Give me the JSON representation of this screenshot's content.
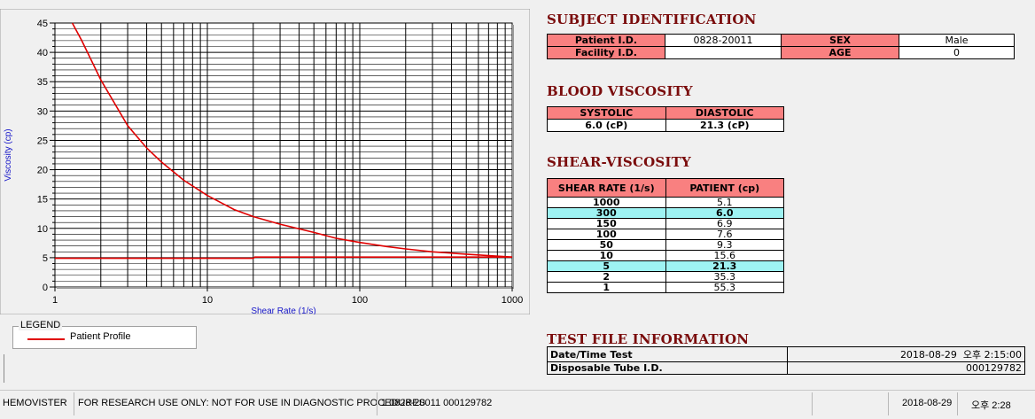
{
  "chart_data": {
    "type": "line",
    "xlabel": "Shear Rate (1/s)",
    "ylabel": "Viscosity (cp)",
    "xscale": "log",
    "xlim": [
      1,
      1000
    ],
    "ylim": [
      0,
      45
    ],
    "x_ticks": [
      "1",
      "10",
      "100",
      "1000"
    ],
    "y_ticks": [
      "0",
      "5",
      "10",
      "15",
      "20",
      "25",
      "30",
      "35",
      "40",
      "45"
    ],
    "grid": true,
    "series": [
      {
        "name": "Patient Profile",
        "color": "#e00000",
        "x": [
          1.3,
          1.5,
          2,
          3,
          4,
          5,
          7,
          10,
          15,
          20,
          30,
          50,
          70,
          100,
          150,
          200,
          300,
          500,
          700,
          1000
        ],
        "y": [
          45,
          42,
          35.3,
          27.5,
          23.7,
          21.3,
          18.2,
          15.6,
          13.2,
          12.0,
          10.7,
          9.3,
          8.3,
          7.6,
          6.9,
          6.5,
          6.0,
          5.6,
          5.35,
          5.1
        ]
      },
      {
        "name": "",
        "color": "#e00000",
        "x": [
          1,
          20,
          20.5,
          1000
        ],
        "y": [
          4.9,
          4.9,
          5.1,
          5.1
        ]
      }
    ]
  },
  "legend": {
    "title": "LEGEND",
    "entry": "Patient Profile"
  },
  "subject": {
    "heading": "SUBJECT IDENTIFICATION",
    "patient_id_label": "Patient I.D.",
    "patient_id": "0828-20011",
    "sex_label": "SEX",
    "sex": "Male",
    "facility_label": "Facility I.D.",
    "facility": "",
    "age_label": "AGE",
    "age": "0"
  },
  "blood": {
    "heading": "BLOOD VISCOSITY",
    "systolic_label": "SYSTOLIC",
    "diastolic_label": "DIASTOLIC",
    "systolic": "6.0 (cP)",
    "diastolic": "21.3 (cP)"
  },
  "shear": {
    "heading": "SHEAR-VISCOSITY",
    "col_rate": "SHEAR RATE (1/s)",
    "col_patient": "PATIENT (cp)",
    "rows": [
      {
        "rate": "1000",
        "value": "5.1"
      },
      {
        "rate": "300",
        "value": "6.0"
      },
      {
        "rate": "150",
        "value": "6.9"
      },
      {
        "rate": "100",
        "value": "7.6"
      },
      {
        "rate": "50",
        "value": "9.3"
      },
      {
        "rate": "10",
        "value": "15.6"
      },
      {
        "rate": "5",
        "value": "21.3"
      },
      {
        "rate": "2",
        "value": "35.3"
      },
      {
        "rate": "1",
        "value": "55.3"
      }
    ]
  },
  "test_file": {
    "heading": "TEST FILE INFORMATION",
    "datetime_label": "Date/Time Test",
    "datetime": "2018-08-29  오후 2:15:00",
    "tube_label": "Disposable Tube I.D.",
    "tube": "000129782"
  },
  "status": {
    "app": "HEMOVISTER",
    "notice": "FOR RESEARCH USE ONLY: NOT FOR USE IN DIAGNOSTIC PROCEDURES",
    "record": "1  0828-20011  000129782",
    "date": "2018-08-29",
    "time": "오후 2:28"
  },
  "colors": {
    "header_pink": "#f98080",
    "highlight_cyan": "#9ef3f3",
    "heading_text": "#7a0c0c",
    "curve": "#e00000"
  }
}
